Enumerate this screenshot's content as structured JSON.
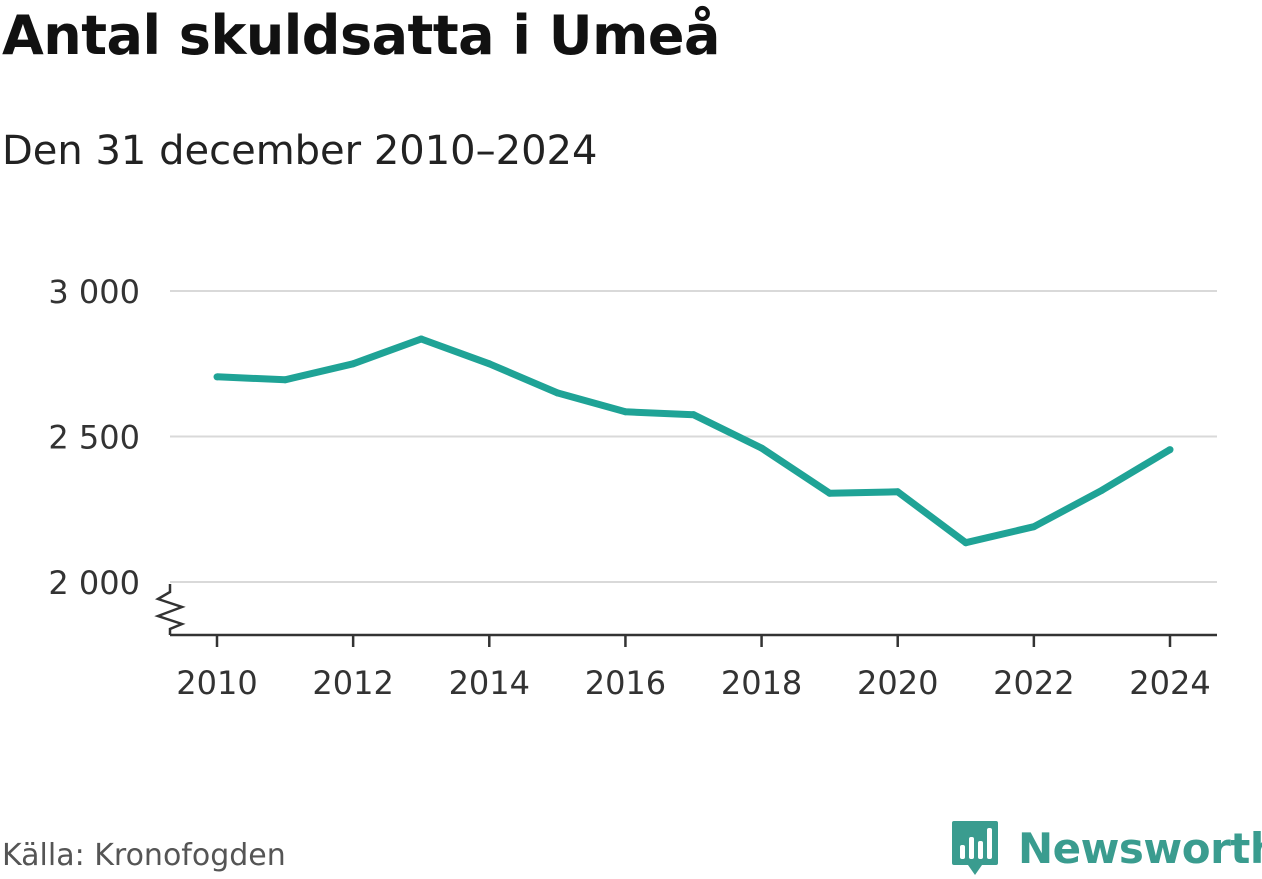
{
  "header": {
    "title": "Antal skuldsatta i Umeå",
    "subtitle": "Den 31 december 2010–2024"
  },
  "footer": {
    "source": "Källa: Kronofogden",
    "brand": "Newsworthy"
  },
  "colors": {
    "line": "#1fa396",
    "grid": "#d9d9d9",
    "axis": "#333333",
    "brand": "#3a9c8f"
  },
  "chart_data": {
    "type": "line",
    "title": "Antal skuldsatta i Umeå",
    "subtitle": "Den 31 december 2010–2024",
    "x": [
      2010,
      2011,
      2012,
      2013,
      2014,
      2015,
      2016,
      2017,
      2018,
      2019,
      2020,
      2021,
      2022,
      2023,
      2024
    ],
    "series": [
      {
        "values": [
          2705,
          2695,
          2750,
          2835,
          2750,
          2650,
          2585,
          2575,
          2460,
          2305,
          2310,
          2135,
          2190,
          2315,
          2455
        ]
      }
    ],
    "ylim": [
      2000,
      3000
    ],
    "yticks": [
      2000,
      2500,
      3000
    ],
    "ytick_labels": [
      "2 000",
      "2 500",
      "3 000"
    ],
    "xticks": [
      2010,
      2012,
      2014,
      2016,
      2018,
      2020,
      2022,
      2024
    ],
    "xtick_labels": [
      "2010",
      "2012",
      "2014",
      "2016",
      "2018",
      "2020",
      "2022",
      "2024"
    ],
    "grid": true,
    "axis_break": true
  }
}
